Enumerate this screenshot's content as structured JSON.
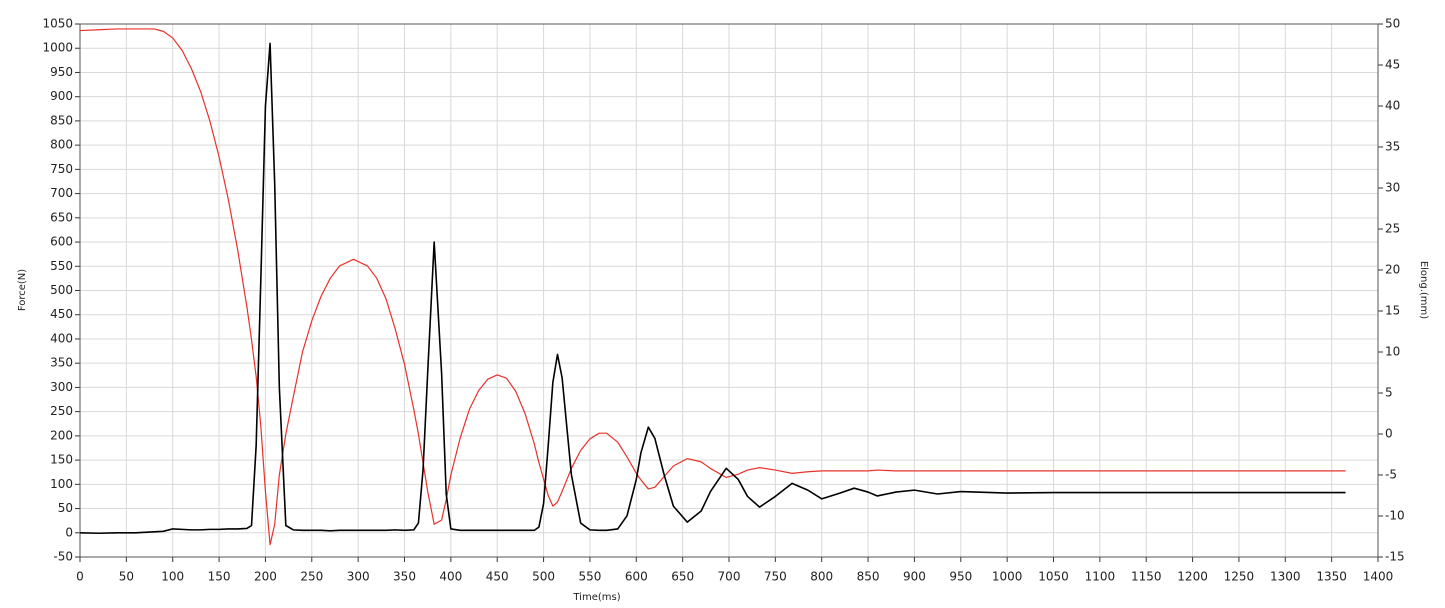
{
  "chart_data": {
    "type": "line",
    "x_label": "Time(ms)",
    "y_label": "Force(N)",
    "y2_label": "Elong.(mm)",
    "xlim": [
      0,
      1400
    ],
    "ylim": [
      -50,
      1050
    ],
    "y2lim": [
      -15,
      50
    ],
    "xticks": [
      0,
      50,
      100,
      150,
      200,
      250,
      300,
      350,
      400,
      450,
      500,
      550,
      600,
      650,
      700,
      750,
      800,
      850,
      900,
      950,
      1000,
      1050,
      1100,
      1150,
      1200,
      1250,
      1300,
      1350,
      1400
    ],
    "yticks": [
      -50,
      0,
      50,
      100,
      150,
      200,
      250,
      300,
      350,
      400,
      450,
      500,
      550,
      600,
      650,
      700,
      750,
      800,
      850,
      900,
      950,
      1000,
      1050
    ],
    "y2ticks": [
      -15,
      -10,
      -5,
      0,
      5,
      10,
      15,
      20,
      25,
      30,
      35,
      40,
      45,
      50
    ],
    "grid": true,
    "x": [
      0,
      20,
      40,
      60,
      80,
      90,
      100,
      110,
      120,
      130,
      140,
      150,
      160,
      170,
      180,
      185,
      190,
      195,
      200,
      205,
      210,
      215,
      222,
      230,
      240,
      250,
      260,
      270,
      280,
      295,
      310,
      320,
      330,
      340,
      350,
      360,
      365,
      370,
      375,
      382,
      390,
      395,
      400,
      410,
      420,
      430,
      440,
      450,
      460,
      470,
      480,
      490,
      495,
      500,
      505,
      510,
      515,
      520,
      525,
      530,
      540,
      550,
      560,
      568,
      580,
      590,
      600,
      605,
      613,
      620,
      630,
      640,
      655,
      670,
      680,
      697,
      710,
      720,
      733,
      750,
      768,
      785,
      800,
      820,
      835,
      850,
      860,
      880,
      900,
      925,
      950,
      1000,
      1050,
      1100,
      1200,
      1300,
      1365
    ],
    "series": [
      {
        "name": "Force",
        "color": "#000000",
        "axis": "y",
        "values": [
          0,
          -1,
          0,
          0,
          2,
          3,
          8,
          7,
          6,
          6,
          7,
          7,
          8,
          8,
          9,
          15,
          180,
          520,
          880,
          1010,
          720,
          300,
          15,
          6,
          5,
          5,
          5,
          4,
          5,
          5,
          5,
          5,
          5,
          6,
          5,
          6,
          20,
          130,
          330,
          600,
          330,
          80,
          8,
          5,
          5,
          5,
          5,
          5,
          5,
          5,
          5,
          5,
          12,
          60,
          180,
          310,
          368,
          320,
          220,
          120,
          20,
          6,
          5,
          5,
          8,
          35,
          110,
          165,
          218,
          195,
          120,
          55,
          22,
          45,
          85,
          133,
          110,
          75,
          53,
          75,
          102,
          88,
          70,
          82,
          92,
          84,
          76,
          84,
          88,
          80,
          85,
          82,
          83,
          83,
          83,
          83,
          83
        ]
      },
      {
        "name": "Elong",
        "color": "#e8312a",
        "axis": "y2",
        "values": [
          49.2,
          49.3,
          49.4,
          49.4,
          49.4,
          49.1,
          48.3,
          46.8,
          44.6,
          41.8,
          38.2,
          33.8,
          28.6,
          22.5,
          15.5,
          11.5,
          7,
          1,
          -7,
          -13.5,
          -11,
          -5,
          0,
          4.5,
          10,
          13.8,
          16.8,
          19,
          20.5,
          21.3,
          20.5,
          19,
          16.5,
          12.8,
          8.5,
          3,
          0,
          -3.5,
          -7,
          -11,
          -10.5,
          -8,
          -5,
          -0.5,
          3,
          5.3,
          6.7,
          7.2,
          6.8,
          5.2,
          2.5,
          -1.2,
          -3.5,
          -5.5,
          -7.5,
          -8.8,
          -8.3,
          -7,
          -5.6,
          -4.2,
          -2,
          -0.6,
          0.1,
          0.1,
          -1,
          -2.8,
          -4.8,
          -5.6,
          -6.7,
          -6.5,
          -5.2,
          -3.9,
          -3,
          -3.4,
          -4.2,
          -5.3,
          -4.9,
          -4.4,
          -4.1,
          -4.4,
          -4.8,
          -4.6,
          -4.5,
          -4.5,
          -4.5,
          -4.5,
          -4.4,
          -4.5,
          -4.5,
          -4.5,
          -4.5,
          -4.5,
          -4.5,
          -4.5,
          -4.5,
          -4.5,
          -4.5
        ]
      }
    ]
  }
}
